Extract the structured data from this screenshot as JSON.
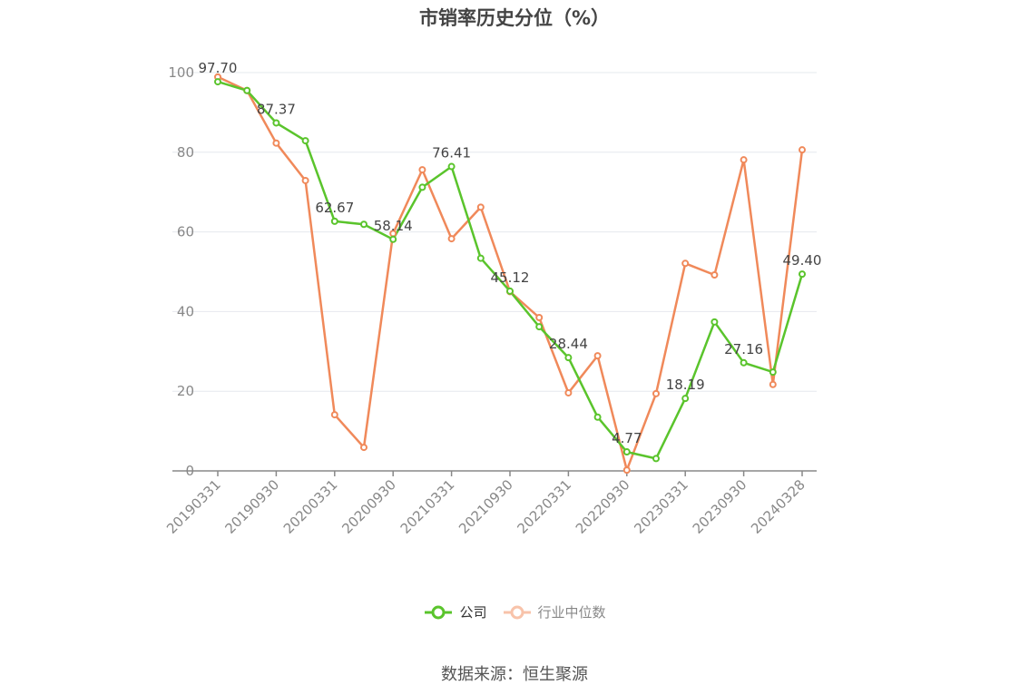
{
  "chart_data": {
    "type": "line",
    "title": "市销率历史分位（%）",
    "xlabel": "",
    "ylabel": "",
    "ylim": [
      0,
      100
    ],
    "yticks": [
      0,
      20,
      40,
      60,
      80,
      100
    ],
    "x": [
      "20190331",
      "20190630",
      "20190930",
      "20191231",
      "20200331",
      "20200630",
      "20200930",
      "20201231",
      "20210331",
      "20210630",
      "20210930",
      "20211231",
      "20220331",
      "20220630",
      "20220930",
      "20221230",
      "20230331",
      "20230630",
      "20230930",
      "20231229",
      "20240328"
    ],
    "xtick_labels": [
      "20190331",
      "20190930",
      "20200331",
      "20200930",
      "20210331",
      "20210930",
      "20220331",
      "20220930",
      "20230331",
      "20230930",
      "20240328"
    ],
    "series": [
      {
        "name": "公司",
        "color": "#5ac42c",
        "values": [
          97.7,
          95.5,
          87.37,
          82.9,
          62.67,
          61.9,
          58.14,
          71.2,
          76.41,
          53.4,
          45.12,
          36.2,
          28.44,
          13.5,
          4.77,
          3.1,
          18.19,
          37.4,
          27.16,
          24.8,
          49.4
        ],
        "labels": {
          "0": "97.70",
          "2": "87.37",
          "4": "62.67",
          "6": "58.14",
          "8": "76.41",
          "10": "45.12",
          "12": "28.44",
          "14": "4.77",
          "16": "18.19",
          "18": "27.16",
          "20": "49.40"
        }
      },
      {
        "name": "行业中位数",
        "color": "#f0895a",
        "values": [
          98.9,
          95.5,
          82.3,
          72.9,
          14.1,
          5.9,
          59.6,
          75.6,
          58.3,
          66.2,
          45.0,
          38.5,
          19.6,
          28.9,
          0.2,
          19.4,
          52.1,
          49.2,
          78.1,
          21.7,
          80.6
        ]
      }
    ],
    "legend": [
      {
        "name": "公司",
        "active": true
      },
      {
        "name": "行业中位数",
        "active": false
      }
    ],
    "legend_position": "bottom-center",
    "grid": true,
    "source": "数据来源：恒生聚源"
  }
}
